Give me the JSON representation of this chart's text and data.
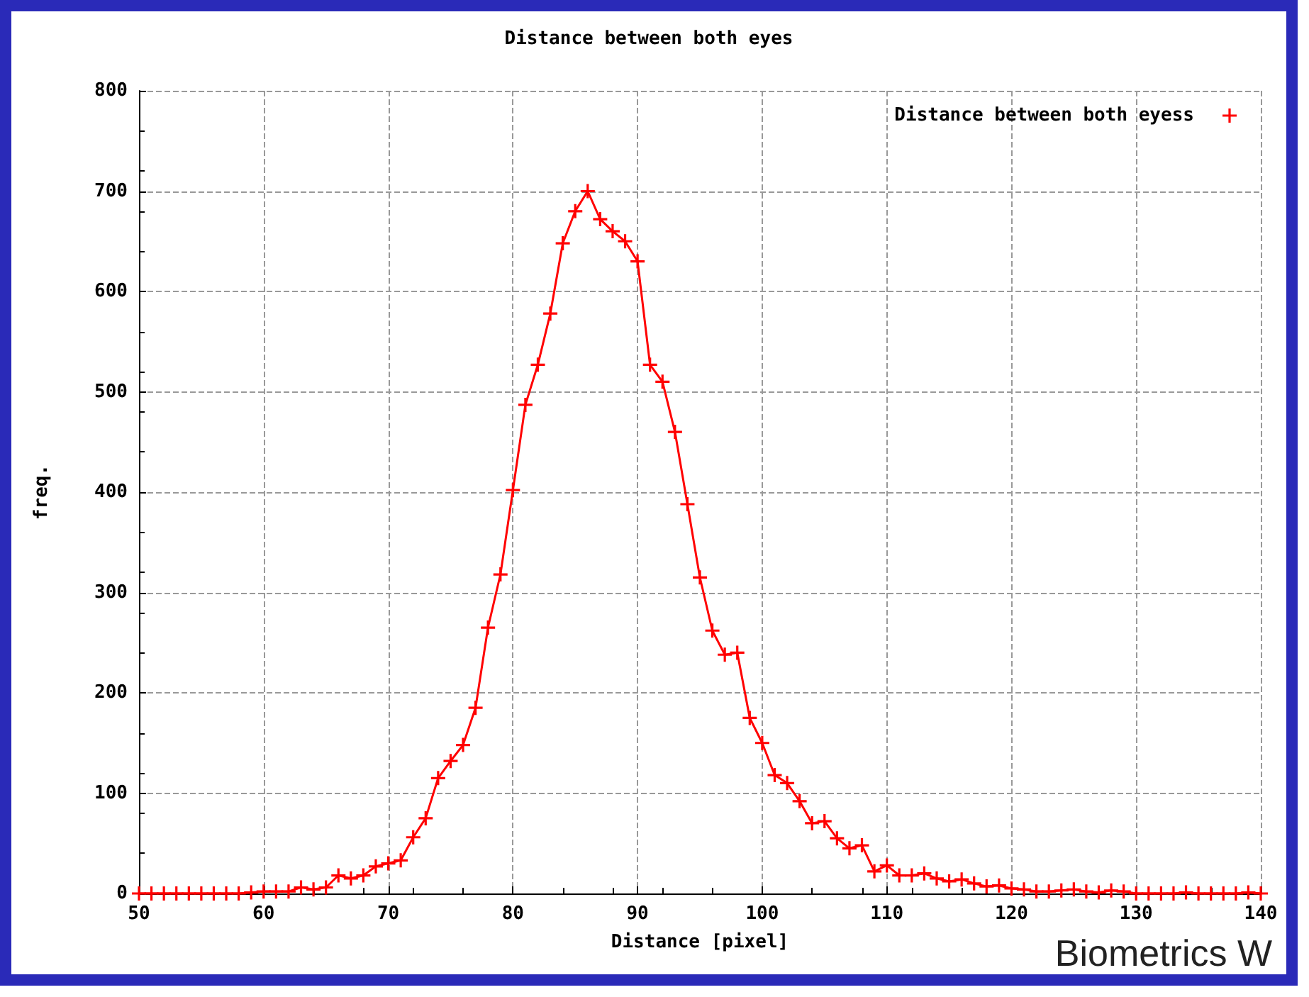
{
  "chart_data": {
    "type": "line",
    "title": "Distance between both eyes",
    "xlabel": "Distance [pixel]",
    "ylabel": "freq.",
    "x": [
      50,
      51,
      52,
      53,
      54,
      55,
      56,
      57,
      58,
      59,
      60,
      61,
      62,
      63,
      64,
      65,
      66,
      67,
      68,
      69,
      70,
      71,
      72,
      73,
      74,
      75,
      76,
      77,
      78,
      79,
      80,
      81,
      82,
      83,
      84,
      85,
      86,
      87,
      88,
      89,
      90,
      91,
      92,
      93,
      94,
      95,
      96,
      97,
      98,
      99,
      100,
      101,
      102,
      103,
      104,
      105,
      106,
      107,
      108,
      109,
      110,
      111,
      112,
      113,
      114,
      115,
      116,
      117,
      118,
      119,
      120,
      121,
      122,
      123,
      124,
      125,
      126,
      127,
      128,
      129,
      130,
      131,
      132,
      133,
      134,
      135,
      136,
      137,
      138,
      139,
      140
    ],
    "series": [
      {
        "name": "Distance between both eyess",
        "color": "#ff0000",
        "values": [
          0,
          0,
          0,
          0,
          0,
          0,
          0,
          0,
          0,
          1,
          2,
          2,
          2,
          6,
          4,
          6,
          18,
          15,
          18,
          27,
          30,
          33,
          56,
          75,
          115,
          132,
          148,
          185,
          265,
          318,
          402,
          487,
          527,
          578,
          648,
          680,
          700,
          672,
          660,
          650,
          630,
          527,
          510,
          460,
          388,
          315,
          262,
          238,
          240,
          175,
          150,
          118,
          110,
          92,
          70,
          72,
          55,
          45,
          48,
          22,
          28,
          18,
          18,
          20,
          15,
          12,
          14,
          10,
          7,
          8,
          5,
          4,
          2,
          2,
          3,
          4,
          2,
          1,
          3,
          2,
          0,
          0,
          0,
          0,
          1,
          0,
          0,
          0,
          0,
          1,
          0
        ]
      }
    ],
    "xlim": [
      50,
      140
    ],
    "xticks": [
      50,
      60,
      70,
      80,
      90,
      100,
      110,
      120,
      130,
      140
    ],
    "ylim": [
      0,
      800
    ],
    "yticks": [
      0,
      100,
      200,
      300,
      400,
      500,
      600,
      700,
      800
    ],
    "grid": true,
    "legend": "top right",
    "marker": "cross",
    "line_style": "solid",
    "annotations": [
      "Biometrics W"
    ]
  }
}
